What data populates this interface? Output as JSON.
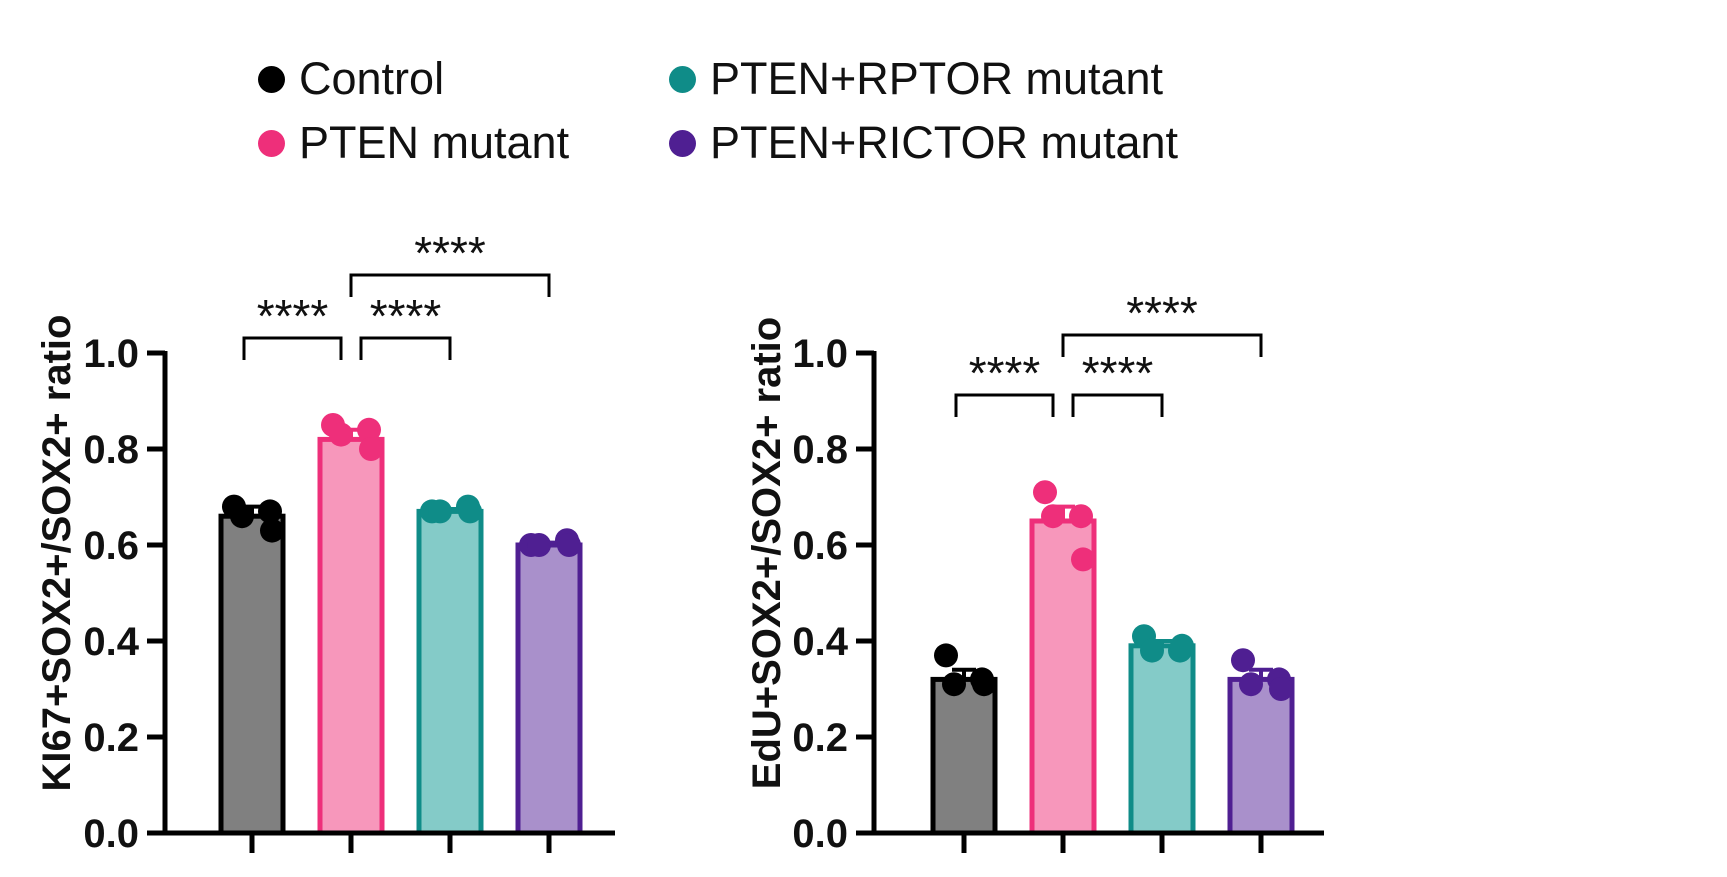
{
  "legend": {
    "items": [
      {
        "label": "Control",
        "color": "#000000"
      },
      {
        "label": "PTEN mutant",
        "color": "#ee2f7a"
      },
      {
        "label": "PTEN+RPTOR mutant",
        "color": "#0f8c88"
      },
      {
        "label": "PTEN+RICTOR mutant",
        "color": "#4f1f92"
      }
    ]
  },
  "chart_data": [
    {
      "type": "bar",
      "ylabel": "KI67+SOX2+/SOX2+ ratio",
      "ylim": [
        0,
        1.0
      ],
      "yticks": [
        "0.0",
        "0.2",
        "0.4",
        "0.6",
        "0.8",
        "1.0"
      ],
      "categories": [
        "Control",
        "PTEN mutant",
        "PTEN+RPTOR mutant",
        "PTEN+RICTOR mutant"
      ],
      "values": [
        0.66,
        0.82,
        0.67,
        0.6
      ],
      "sem": [
        0.02,
        0.02,
        0.005,
        0.005
      ],
      "points": [
        [
          0.68,
          0.67,
          0.66,
          0.63
        ],
        [
          0.85,
          0.84,
          0.83,
          0.8
        ],
        [
          0.67,
          0.68,
          0.67,
          0.67
        ],
        [
          0.6,
          0.61,
          0.6,
          0.6
        ]
      ],
      "comparisons": [
        {
          "from": 0,
          "to": 1,
          "label": "****",
          "level": 0
        },
        {
          "from": 1,
          "to": 2,
          "label": "****",
          "level": 0
        },
        {
          "from": 1,
          "to": 3,
          "label": "****",
          "level": 1
        }
      ]
    },
    {
      "type": "bar",
      "ylabel": "EdU+SOX2+/SOX2+ ratio",
      "ylim": [
        0,
        1.0
      ],
      "yticks": [
        "0.0",
        "0.2",
        "0.4",
        "0.6",
        "0.8",
        "1.0"
      ],
      "categories": [
        "Control",
        "PTEN mutant",
        "PTEN+RPTOR mutant",
        "PTEN+RICTOR mutant"
      ],
      "values": [
        0.32,
        0.65,
        0.39,
        0.32
      ],
      "sem": [
        0.02,
        0.03,
        0.01,
        0.02
      ],
      "points": [
        [
          0.37,
          0.32,
          0.31,
          0.31
        ],
        [
          0.71,
          0.66,
          0.66,
          0.57
        ],
        [
          0.41,
          0.38,
          0.38,
          0.39
        ],
        [
          0.36,
          0.32,
          0.31,
          0.3
        ]
      ],
      "comparisons": [
        {
          "from": 0,
          "to": 1,
          "label": "****",
          "level": 0
        },
        {
          "from": 1,
          "to": 2,
          "label": "****",
          "level": 0
        },
        {
          "from": 1,
          "to": 3,
          "label": "****",
          "level": 1
        }
      ]
    }
  ],
  "colors": {
    "bar_fill": [
      "#808080",
      "#f797bb",
      "#84cbc8",
      "#a990cb"
    ],
    "bar_edge": [
      "#000000",
      "#ee2f7a",
      "#0f8c88",
      "#4f1f92"
    ],
    "axis": "#000000"
  }
}
